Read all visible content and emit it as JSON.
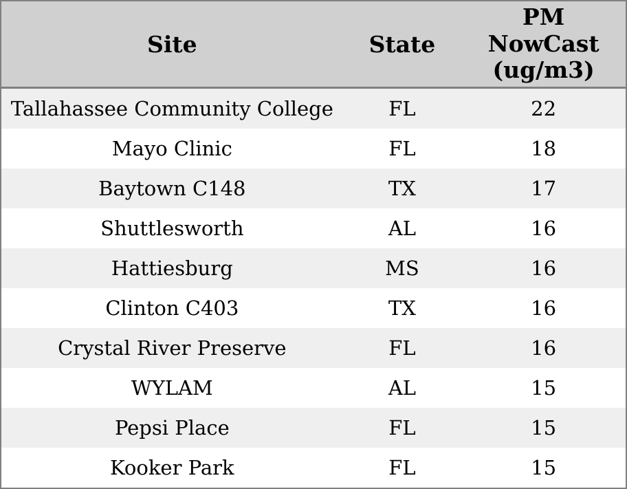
{
  "chart_data": {
    "type": "table",
    "title": "",
    "columns": [
      "Site",
      "State",
      "PM NowCast (ug/m3)"
    ],
    "rows": [
      {
        "site": "Tallahassee Community College",
        "state": "FL",
        "pm_nowcast": 22
      },
      {
        "site": "Mayo Clinic",
        "state": "FL",
        "pm_nowcast": 18
      },
      {
        "site": "Baytown C148",
        "state": "TX",
        "pm_nowcast": 17
      },
      {
        "site": "Shuttlesworth",
        "state": "AL",
        "pm_nowcast": 16
      },
      {
        "site": "Hattiesburg",
        "state": "MS",
        "pm_nowcast": 16
      },
      {
        "site": "Clinton C403",
        "state": "TX",
        "pm_nowcast": 16
      },
      {
        "site": "Crystal River Preserve",
        "state": "FL",
        "pm_nowcast": 16
      },
      {
        "site": "WYLAM",
        "state": "AL",
        "pm_nowcast": 15
      },
      {
        "site": "Pepsi Place",
        "state": "FL",
        "pm_nowcast": 15
      },
      {
        "site": "Kooker Park",
        "state": "FL",
        "pm_nowcast": 15
      }
    ]
  },
  "header": {
    "site_label": "Site",
    "state_label": "State",
    "pm_label": "PM\nNowCast\n(ug/m3)"
  },
  "colors": {
    "header_bg": "#d0d0d0",
    "border": "#808080",
    "row_alt_bg": "#efefef",
    "row_bg": "#ffffff",
    "text": "#000000"
  }
}
